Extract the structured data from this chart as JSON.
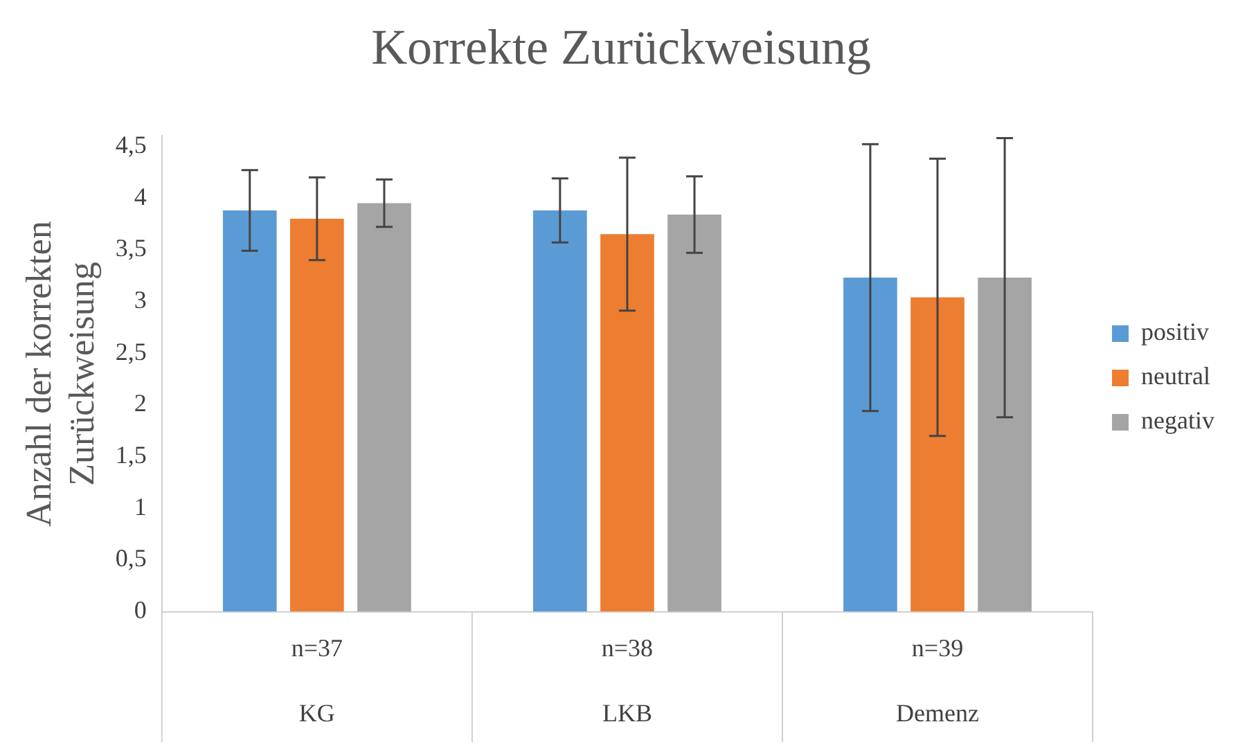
{
  "chart_data": {
    "type": "bar",
    "title": "Korrekte Zurückweisung",
    "ylabel": "Anzahl der korrekten Zurückweisung",
    "categories": [
      "KG",
      "LKB",
      "Demenz"
    ],
    "annotations": [
      "n=37",
      "n=38",
      "n=39"
    ],
    "series": [
      {
        "name": "positiv",
        "color": "#5b9bd5",
        "values": [
          3.88,
          3.88,
          3.23
        ],
        "errors": [
          0.39,
          0.31,
          1.29
        ]
      },
      {
        "name": "neutral",
        "color": "#ed7d31",
        "values": [
          3.8,
          3.65,
          3.04
        ],
        "errors": [
          0.4,
          0.74,
          1.34
        ]
      },
      {
        "name": "negativ",
        "color": "#a5a5a5",
        "values": [
          3.95,
          3.84,
          3.23
        ],
        "errors": [
          0.23,
          0.37,
          1.35
        ]
      }
    ],
    "ylim": [
      0,
      4.6
    ],
    "yticks": [
      0,
      {
        "value": 0.5,
        "label": "0,5"
      },
      1,
      {
        "value": 1.5,
        "label": "1,5"
      },
      2,
      {
        "value": 2.5,
        "label": "2,5"
      },
      3,
      {
        "value": 3.5,
        "label": "3,5"
      },
      4,
      {
        "value": 4.5,
        "label": "4,5"
      }
    ],
    "grid": false,
    "legend": "right"
  }
}
